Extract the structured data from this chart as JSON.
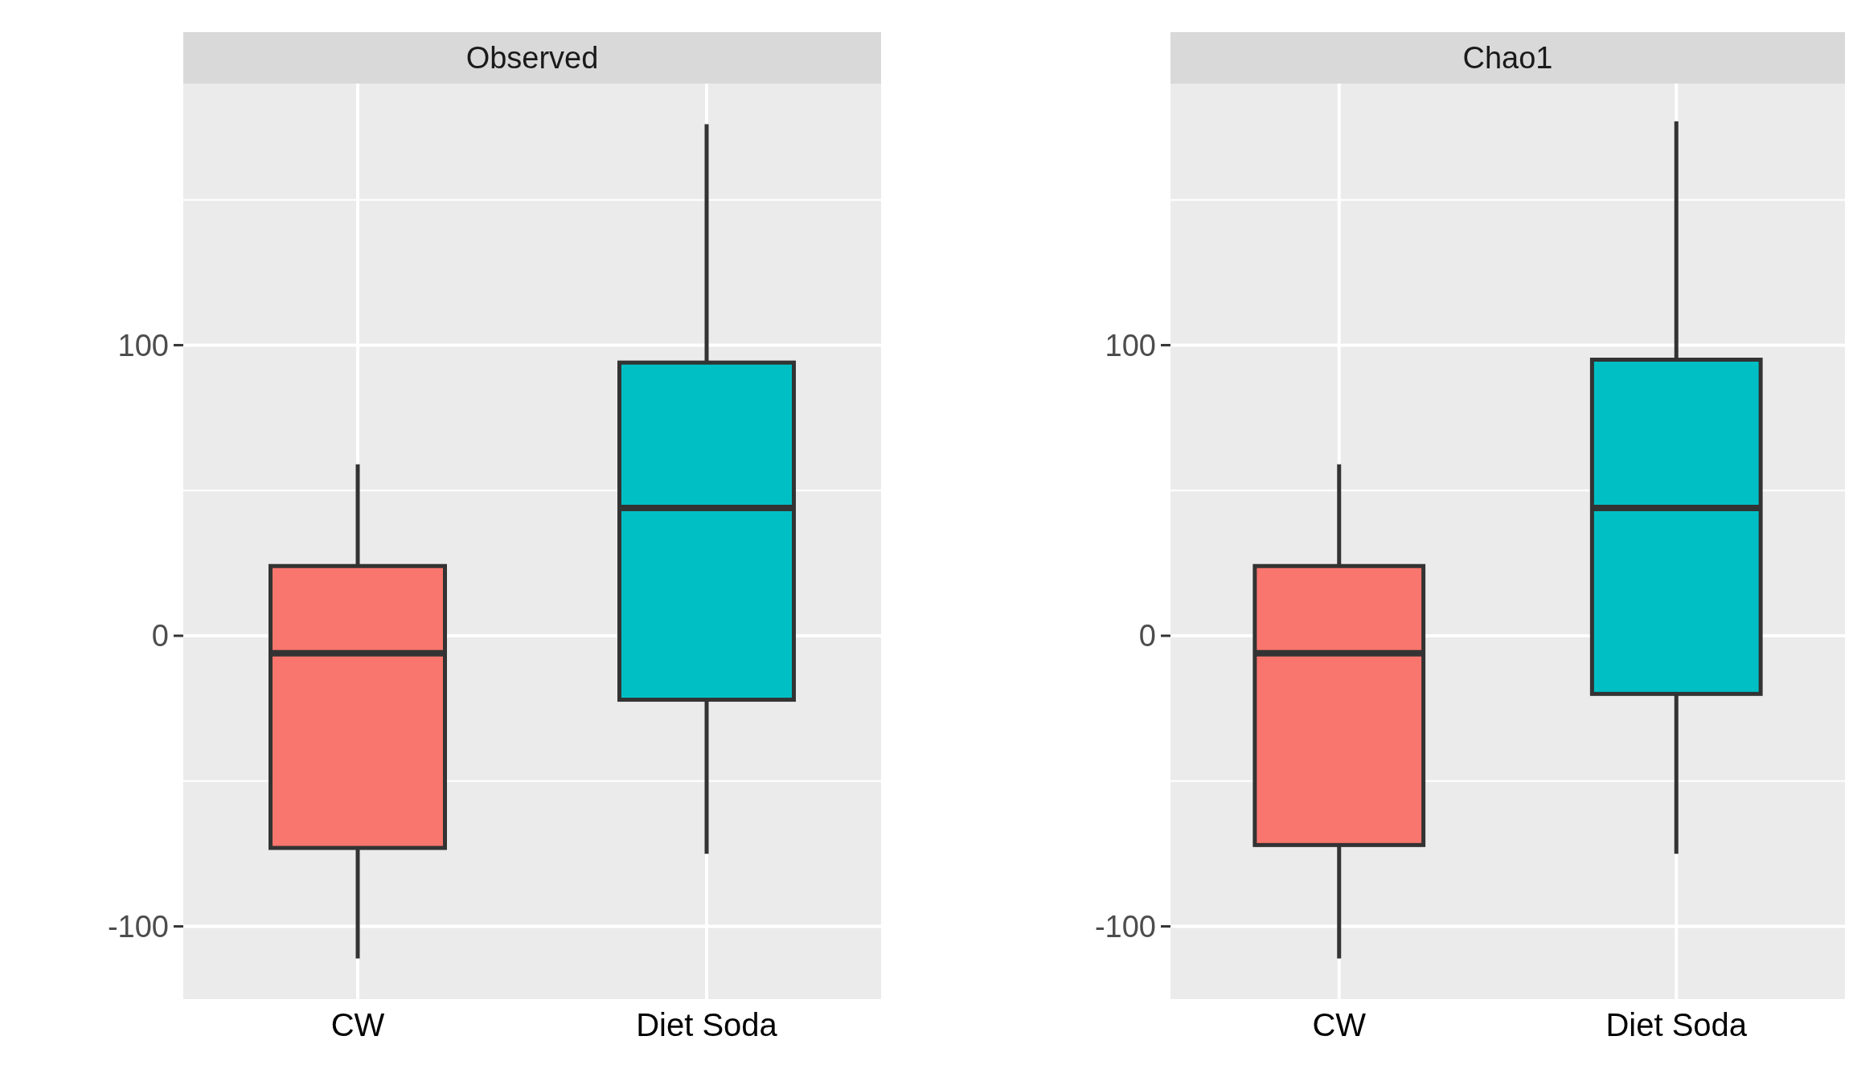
{
  "chart_data": [
    {
      "type": "box",
      "title": "Observed",
      "categories": [
        "CW",
        "Diet Soda"
      ],
      "colors": [
        "#f8766d",
        "#00bfc4"
      ],
      "ylim": [
        -125,
        190
      ],
      "yticks": [
        {
          "value": -100,
          "label": "-100"
        },
        {
          "value": -50,
          "label": null
        },
        {
          "value": 0,
          "label": "0"
        },
        {
          "value": 50,
          "label": null
        },
        {
          "value": 100,
          "label": "100"
        },
        {
          "value": 150,
          "label": null
        }
      ],
      "grid": true,
      "boxes": [
        {
          "low": -111,
          "q1": -73,
          "median": -6,
          "q3": 24,
          "high": 59
        },
        {
          "low": -75,
          "q1": -22,
          "median": 44,
          "q3": 94,
          "high": 176
        }
      ]
    },
    {
      "type": "box",
      "title": "Chao1",
      "categories": [
        "CW",
        "Diet Soda"
      ],
      "colors": [
        "#f8766d",
        "#00bfc4"
      ],
      "ylim": [
        -125,
        190
      ],
      "yticks": [
        {
          "value": -100,
          "label": "-100"
        },
        {
          "value": -50,
          "label": null
        },
        {
          "value": 0,
          "label": "0"
        },
        {
          "value": 50,
          "label": null
        },
        {
          "value": 100,
          "label": "100"
        },
        {
          "value": 150,
          "label": null
        }
      ],
      "grid": true,
      "boxes": [
        {
          "low": -111,
          "q1": -72,
          "median": -6,
          "q3": 24,
          "high": 59
        },
        {
          "low": -75,
          "q1": -20,
          "median": 44,
          "q3": 95,
          "high": 177
        }
      ]
    }
  ]
}
